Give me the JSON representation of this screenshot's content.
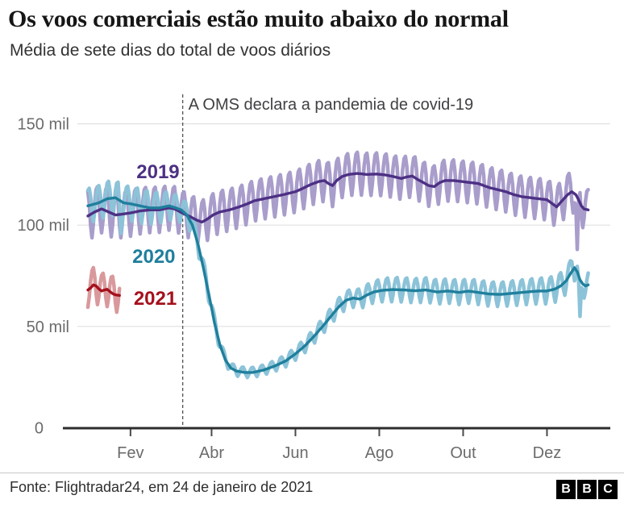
{
  "title": "Os voos comerciais estão muito abaixo do normal",
  "subtitle": "Média de sete dias do total de voos diários",
  "annotation": {
    "text": "A OMS declara a pandemia de covid-19"
  },
  "footer": {
    "source": "Fonte: Flightradar24, em 24 de janeiro de 2021",
    "logo_letters": [
      "B",
      "B",
      "C"
    ]
  },
  "chart_data": {
    "type": "line",
    "title": "Os voos comerciais estão muito abaixo do normal",
    "subtitle": "Média de sete dias do total de voos diários",
    "unit": "mil voos diários (thousands of daily flights)",
    "ylim": [
      0,
      157
    ],
    "x_range_days": 365,
    "grid": "horizontal",
    "legend_position": "inline-left",
    "y_ticks": [
      {
        "value": 0,
        "label": "0"
      },
      {
        "value": 50,
        "label": "50 mil"
      },
      {
        "value": 100,
        "label": "100 mil"
      },
      {
        "value": 150,
        "label": "150 mil"
      }
    ],
    "x_ticks": [
      {
        "day": 31,
        "label": "Fev"
      },
      {
        "day": 90,
        "label": "Abr"
      },
      {
        "day": 151,
        "label": "Jun"
      },
      {
        "day": 212,
        "label": "Ago"
      },
      {
        "day": 273,
        "label": "Out"
      },
      {
        "day": 334,
        "label": "Dez"
      }
    ],
    "annotation": {
      "text": "A OMS declara a pandemia de covid-19",
      "day": 69
    },
    "weekly_pattern": [
      1.0,
      0.5,
      -0.45,
      -1.0,
      -0.45,
      0.4,
      0.9
    ],
    "series": [
      {
        "name": "2019",
        "color": "#4d3084",
        "light_color": "#a89dcb",
        "label_anchor": {
          "day": 51,
          "value": 126
        },
        "avg_points": [
          [
            0,
            104.5
          ],
          [
            5,
            106.5
          ],
          [
            10,
            108
          ],
          [
            15,
            106.5
          ],
          [
            20,
            105
          ],
          [
            26,
            105.5
          ],
          [
            31,
            106
          ],
          [
            38,
            107
          ],
          [
            45,
            107.5
          ],
          [
            52,
            107.5
          ],
          [
            59,
            108.5
          ],
          [
            63,
            108
          ],
          [
            66,
            107
          ],
          [
            70,
            105.5
          ],
          [
            75,
            104
          ],
          [
            79,
            102.5
          ],
          [
            83,
            101.5
          ],
          [
            87,
            103
          ],
          [
            91,
            105
          ],
          [
            96,
            106.5
          ],
          [
            103,
            107.5
          ],
          [
            110,
            109
          ],
          [
            116,
            110.5
          ],
          [
            121,
            112
          ],
          [
            128,
            113
          ],
          [
            135,
            114
          ],
          [
            142,
            115
          ],
          [
            151,
            116.5
          ],
          [
            156,
            118
          ],
          [
            162,
            120
          ],
          [
            168,
            121.5
          ],
          [
            172,
            122
          ],
          [
            175,
            120.5
          ],
          [
            178,
            119.5
          ],
          [
            181,
            122
          ],
          [
            185,
            124
          ],
          [
            190,
            125
          ],
          [
            196,
            125.5
          ],
          [
            203,
            125
          ],
          [
            210,
            125.2
          ],
          [
            216,
            124.8
          ],
          [
            222,
            124
          ],
          [
            228,
            123
          ],
          [
            232,
            123.8
          ],
          [
            236,
            124.2
          ],
          [
            240,
            122.5
          ],
          [
            244,
            121
          ],
          [
            248,
            119.5
          ],
          [
            252,
            119
          ],
          [
            256,
            121
          ],
          [
            260,
            122
          ],
          [
            266,
            122
          ],
          [
            272,
            121.5
          ],
          [
            278,
            121
          ],
          [
            284,
            120.5
          ],
          [
            288,
            119.5
          ],
          [
            292,
            118.5
          ],
          [
            298,
            117.5
          ],
          [
            304,
            116.5
          ],
          [
            310,
            115
          ],
          [
            316,
            114
          ],
          [
            322,
            113.5
          ],
          [
            328,
            113
          ],
          [
            334,
            112.5
          ],
          [
            338,
            110.5
          ],
          [
            341,
            109
          ],
          [
            345,
            112
          ],
          [
            349,
            115
          ],
          [
            352,
            116.5
          ],
          [
            355,
            115
          ],
          [
            357,
            112.5
          ],
          [
            359,
            109.5
          ],
          [
            361,
            108
          ],
          [
            364,
            107.5
          ]
        ],
        "weekly_amplitude_points": [
          [
            0,
            12
          ],
          [
            60,
            11
          ],
          [
            120,
            10
          ],
          [
            200,
            10.5
          ],
          [
            300,
            10
          ],
          [
            364,
            10
          ]
        ],
        "daily_extremes": [
          [
            356,
            88
          ]
        ],
        "phase": 0
      },
      {
        "name": "2020",
        "color": "#1f7f9c",
        "light_color": "#8cc3d8",
        "label_anchor": {
          "day": 48,
          "value": 84
        },
        "avg_points": [
          [
            0,
            109.5
          ],
          [
            8,
            111
          ],
          [
            14,
            113
          ],
          [
            20,
            113.5
          ],
          [
            26,
            111
          ],
          [
            31,
            110.5
          ],
          [
            38,
            109.5
          ],
          [
            45,
            108.5
          ],
          [
            52,
            108.5
          ],
          [
            59,
            109.5
          ],
          [
            64,
            108.5
          ],
          [
            68,
            107.5
          ],
          [
            72,
            105
          ],
          [
            76,
            100
          ],
          [
            80,
            91
          ],
          [
            84,
            79
          ],
          [
            88,
            66
          ],
          [
            92,
            52
          ],
          [
            96,
            41
          ],
          [
            100,
            33.5
          ],
          [
            104,
            29.5
          ],
          [
            108,
            28
          ],
          [
            114,
            27.3
          ],
          [
            120,
            27.3
          ],
          [
            128,
            28.5
          ],
          [
            136,
            30.5
          ],
          [
            144,
            33
          ],
          [
            151,
            36.5
          ],
          [
            158,
            40.5
          ],
          [
            165,
            45.5
          ],
          [
            172,
            51
          ],
          [
            178,
            56
          ],
          [
            183,
            60
          ],
          [
            188,
            63
          ],
          [
            193,
            64
          ],
          [
            198,
            63.5
          ],
          [
            203,
            65.5
          ],
          [
            208,
            67
          ],
          [
            214,
            67.8
          ],
          [
            222,
            68.2
          ],
          [
            230,
            68
          ],
          [
            238,
            67.6
          ],
          [
            246,
            68
          ],
          [
            254,
            67
          ],
          [
            262,
            67.5
          ],
          [
            270,
            66.8
          ],
          [
            277,
            67.4
          ],
          [
            284,
            66.8
          ],
          [
            292,
            66
          ],
          [
            300,
            65.8
          ],
          [
            308,
            66.3
          ],
          [
            316,
            66.8
          ],
          [
            324,
            67.3
          ],
          [
            330,
            67.5
          ],
          [
            334,
            67.5
          ],
          [
            340,
            68.5
          ],
          [
            344,
            70
          ],
          [
            348,
            72.5
          ],
          [
            351,
            76
          ],
          [
            354,
            79
          ],
          [
            356,
            77
          ],
          [
            358,
            73
          ],
          [
            360,
            71
          ],
          [
            362,
            70
          ],
          [
            364,
            70.5
          ]
        ],
        "weekly_amplitude_points": [
          [
            0,
            8.5
          ],
          [
            40,
            8.5
          ],
          [
            70,
            6
          ],
          [
            85,
            4
          ],
          [
            100,
            2.5
          ],
          [
            130,
            2.5
          ],
          [
            160,
            3.5
          ],
          [
            190,
            4.5
          ],
          [
            220,
            6
          ],
          [
            300,
            6
          ],
          [
            340,
            6.5
          ],
          [
            364,
            6.5
          ]
        ],
        "daily_extremes": [
          [
            24,
            96
          ],
          [
            352,
            82
          ],
          [
            358,
            55
          ]
        ],
        "phase": 6
      },
      {
        "name": "2021",
        "color": "#a5101c",
        "light_color": "#d9999c",
        "label_anchor": {
          "day": 49,
          "value": 63.5
        },
        "avg_points": [
          [
            0,
            68
          ],
          [
            2,
            69
          ],
          [
            4,
            70.5
          ],
          [
            6,
            70
          ],
          [
            8,
            68.5
          ],
          [
            10,
            67.5
          ],
          [
            12,
            68
          ],
          [
            14,
            68.3
          ],
          [
            16,
            67.2
          ],
          [
            18,
            66.2
          ],
          [
            20,
            65.6
          ],
          [
            23,
            65.3
          ]
        ],
        "weekly_amplitude_points": [
          [
            0,
            8.5
          ],
          [
            23,
            8.5
          ]
        ],
        "daily_extremes": [],
        "phase": 3
      }
    ]
  }
}
